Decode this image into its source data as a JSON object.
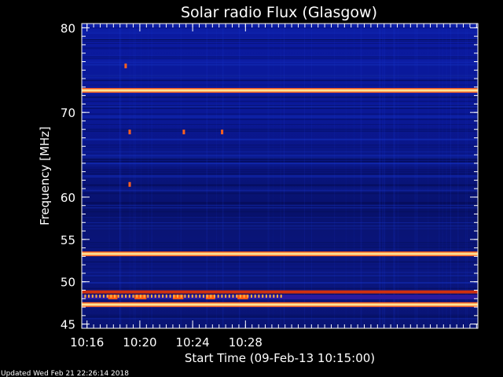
{
  "chart_data": {
    "type": "heatmap",
    "title": "Solar radio Flux (Glasgow)",
    "xlabel": "Start Time (09-Feb-13 10:15:00)",
    "ylabel": "Frequency [MHz]",
    "x_unit": "minutes after 10:15:00",
    "xlim": [
      0.6,
      30.6
    ],
    "ylim": [
      80.5,
      44.5
    ],
    "x_ticks": [
      {
        "value": 1,
        "label": "10:16"
      },
      {
        "value": 5,
        "label": "10:20"
      },
      {
        "value": 9,
        "label": "10:24"
      },
      {
        "value": 13,
        "label": "10:28"
      }
    ],
    "y_ticks": [
      {
        "value": 45,
        "label": "45"
      },
      {
        "value": 50,
        "label": "50"
      },
      {
        "value": 55,
        "label": "55"
      },
      {
        "value": 60,
        "label": "60"
      },
      {
        "value": 70,
        "label": "70"
      },
      {
        "value": 80,
        "label": "80"
      }
    ],
    "minor_x_step": 0.5,
    "minor_y_step": 1,
    "background_color": "#0b1a8c",
    "emission_bands": [
      {
        "freq_mhz": 47.3,
        "level": "high"
      },
      {
        "freq_mhz": 48.2,
        "level": "intermittent"
      },
      {
        "freq_mhz": 48.8,
        "level": "medium"
      },
      {
        "freq_mhz": 53.3,
        "level": "high"
      },
      {
        "freq_mhz": 72.6,
        "level": "high"
      }
    ],
    "bursts": [
      {
        "time_min": 4.2,
        "freq_mhz": 61.5
      },
      {
        "time_min": 4.2,
        "freq_mhz": 67.7
      },
      {
        "time_min": 3.9,
        "freq_mhz": 75.5
      },
      {
        "time_min": 8.3,
        "freq_mhz": 67.7
      },
      {
        "time_min": 11.2,
        "freq_mhz": 67.7
      }
    ]
  },
  "footer": {
    "updated": "Updated Wed Feb 21 22:26:14 2018"
  }
}
